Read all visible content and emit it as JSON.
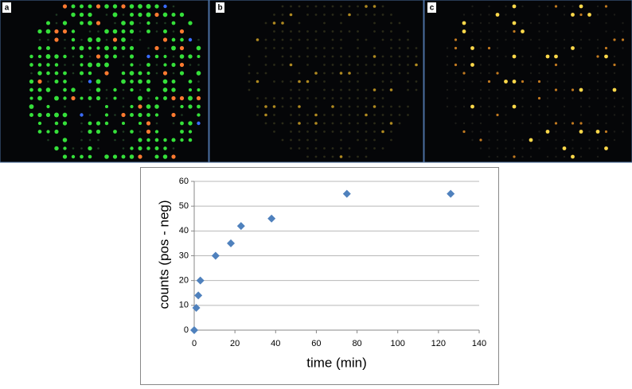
{
  "panel_labels": [
    "a",
    "b",
    "c"
  ],
  "chart_data": {
    "type": "scatter",
    "x_label": "time (min)",
    "y_label": "counts (pos - neg)",
    "x": [
      0,
      1,
      2,
      3,
      10.5,
      18,
      23,
      38,
      75,
      126
    ],
    "values": [
      0,
      9,
      14,
      20,
      30,
      35,
      42,
      45,
      55,
      55
    ],
    "color": "#4f81bd",
    "xlim": [
      0,
      140
    ],
    "xticks": [
      0,
      20,
      40,
      60,
      80,
      100,
      120,
      140
    ],
    "ylim": [
      0,
      60
    ],
    "yticks": [
      0,
      10,
      20,
      30,
      40,
      50,
      60
    ],
    "grid": true
  }
}
